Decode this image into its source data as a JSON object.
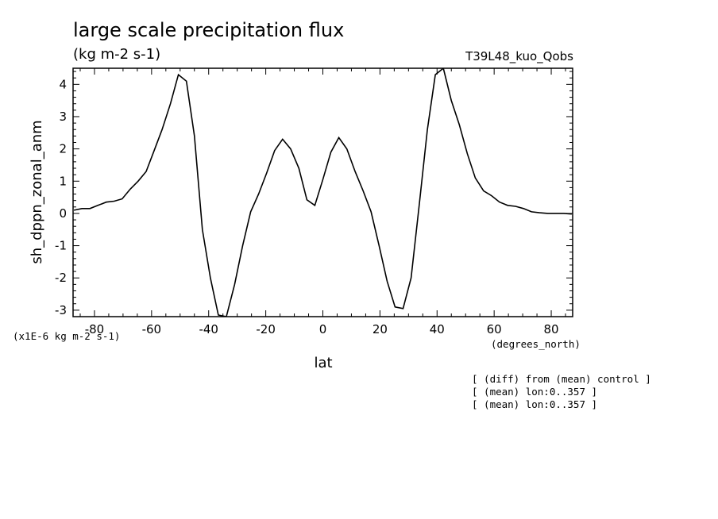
{
  "chart_data": {
    "type": "line",
    "title": "large scale precipitation flux",
    "units": "(kg m-2 s-1)",
    "run_label": "T39L48_kuo_Qobs",
    "xlabel": "lat",
    "ylabel": "sh_dppn_zonal_anm",
    "x_units": "(degrees_north)",
    "y_scale_note": "(x1E-6 kg m-2 s-1)",
    "xlim": [
      -87.5,
      87.5
    ],
    "ylim": [
      -3.2,
      4.5
    ],
    "x_ticks": [
      -80,
      -60,
      -40,
      -20,
      0,
      20,
      40,
      60,
      80
    ],
    "x_tick_labels": [
      "-80",
      "-60",
      "-40",
      "-20",
      "0",
      "20",
      "40",
      "60",
      "80"
    ],
    "y_ticks": [
      -3,
      -2,
      -1,
      0,
      1,
      2,
      3,
      4
    ],
    "y_tick_labels": [
      "-3",
      "-2",
      "-1",
      "0",
      "1",
      "2",
      "3",
      "4"
    ],
    "grid": false,
    "series": [
      {
        "x": [
          -87.2,
          -84.4,
          -81.6,
          -78.8,
          -75.9,
          -73.1,
          -70.3,
          -67.5,
          -64.7,
          -61.9,
          -59.1,
          -56.3,
          -53.4,
          -50.6,
          -47.8,
          -45.0,
          -42.2,
          -39.4,
          -36.6,
          -33.8,
          -30.9,
          -28.1,
          -25.3,
          -22.5,
          -19.7,
          -16.9,
          -14.1,
          -11.3,
          -8.4,
          -5.6,
          -2.8,
          0.0,
          2.8,
          5.6,
          8.4,
          11.3,
          14.1,
          16.9,
          19.7,
          22.5,
          25.3,
          28.1,
          30.9,
          33.8,
          36.6,
          39.4,
          42.2,
          45.0,
          47.8,
          50.6,
          53.4,
          56.3,
          59.1,
          61.9,
          64.7,
          67.5,
          70.3,
          73.1,
          75.9,
          78.8,
          81.6,
          84.4,
          87.2
        ],
        "y": [
          0.1,
          0.15,
          0.15,
          0.25,
          0.35,
          0.38,
          0.45,
          0.75,
          1.0,
          1.3,
          1.95,
          2.6,
          3.4,
          4.3,
          4.1,
          2.4,
          -0.5,
          -2.0,
          -3.15,
          -3.2,
          -2.2,
          -1.0,
          0.05,
          0.6,
          1.25,
          1.95,
          2.3,
          2.0,
          1.4,
          0.42,
          0.25,
          1.05,
          1.9,
          2.35,
          2.0,
          1.3,
          0.7,
          0.05,
          -1.0,
          -2.1,
          -2.9,
          -2.95,
          -2.0,
          0.3,
          2.6,
          4.3,
          4.5,
          3.5,
          2.75,
          1.85,
          1.1,
          0.7,
          0.55,
          0.35,
          0.25,
          0.22,
          0.15,
          0.05,
          0.02,
          0.0,
          0.0,
          0.0,
          -0.02
        ]
      }
    ],
    "notes": [
      "[ (diff) from (mean) control ]",
      "[ (mean) lon:0..357 ]",
      "[ (mean) lon:0..357 ]"
    ]
  }
}
